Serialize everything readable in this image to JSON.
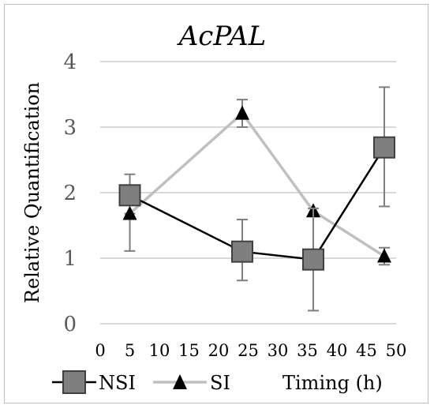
{
  "chart_data": {
    "type": "line",
    "title": "AcPAL",
    "xlabel": "Timing (h)",
    "ylabel": "Relative Quantification",
    "xlim": [
      0,
      50
    ],
    "ylim": [
      0,
      4
    ],
    "x_ticks": [
      "0",
      "5",
      "10",
      "15",
      "20",
      "25",
      "30",
      "35",
      "40",
      "45",
      "50"
    ],
    "y_ticks": [
      "0",
      "1",
      "2",
      "3",
      "4"
    ],
    "grid": true,
    "legend_position": "bottom",
    "series": [
      {
        "name": "NSI",
        "marker": "square",
        "color": "#000000",
        "marker_fill": "#7f7f7f",
        "points": [
          {
            "x": 5,
            "y": 1.96,
            "err_low": 1.96,
            "err_high": 2.28
          },
          {
            "x": 24,
            "y": 1.1,
            "err_low": 0.66,
            "err_high": 1.59
          },
          {
            "x": 36,
            "y": 0.98,
            "err_low": 0.2,
            "err_high": 1.76
          },
          {
            "x": 48,
            "y": 2.69,
            "err_low": 1.79,
            "err_high": 3.61
          }
        ]
      },
      {
        "name": "SI",
        "marker": "triangle",
        "color": "#c0c0c0",
        "marker_fill": "#000000",
        "points": [
          {
            "x": 5,
            "y": 1.68,
            "err_low": 1.11,
            "err_high": 1.68
          },
          {
            "x": 24,
            "y": 3.21,
            "err_low": 3.0,
            "err_high": 3.42
          },
          {
            "x": 36,
            "y": 1.72,
            "err_low": 1.72,
            "err_high": 1.72
          },
          {
            "x": 48,
            "y": 1.03,
            "err_low": 0.9,
            "err_high": 1.16
          }
        ]
      }
    ]
  }
}
